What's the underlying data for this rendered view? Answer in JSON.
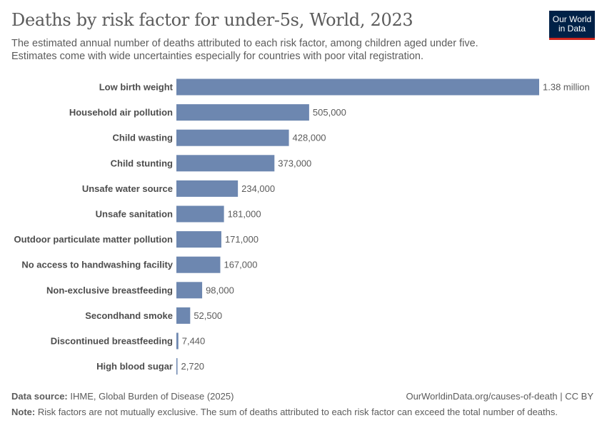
{
  "header": {
    "title": "Deaths by risk factor for under-5s, World, 2023",
    "subtitle": "The estimated annual number of deaths attributed to each risk factor, among children aged under five. Estimates come with wide uncertainties especially for countries with poor vital registration.",
    "logo_text": "Our World in Data"
  },
  "chart_data": {
    "type": "bar",
    "orientation": "horizontal",
    "bar_color": "#6d87b0",
    "categories": [
      "Low birth weight",
      "Household air pollution",
      "Child wasting",
      "Child stunting",
      "Unsafe water source",
      "Unsafe sanitation",
      "Outdoor particulate matter pollution",
      "No access to handwashing facility",
      "Non-exclusive breastfeeding",
      "Secondhand smoke",
      "Discontinued breastfeeding",
      "High blood sugar"
    ],
    "values": [
      1380000,
      505000,
      428000,
      373000,
      234000,
      181000,
      171000,
      167000,
      98000,
      52500,
      7440,
      2720
    ],
    "data_labels": [
      "1.38 million",
      "505,000",
      "428,000",
      "373,000",
      "234,000",
      "181,000",
      "171,000",
      "167,000",
      "98,000",
      "52,500",
      "7,440",
      "2,720"
    ]
  },
  "footer": {
    "source_label": "Data source:",
    "source": "IHME, Global Burden of Disease (2025)",
    "url": "OurWorldinData.org/causes-of-death | CC BY",
    "note_label": "Note:",
    "note": "Risk factors are not mutually exclusive. The sum of deaths attributed to each risk factor can exceed the total number of deaths."
  }
}
